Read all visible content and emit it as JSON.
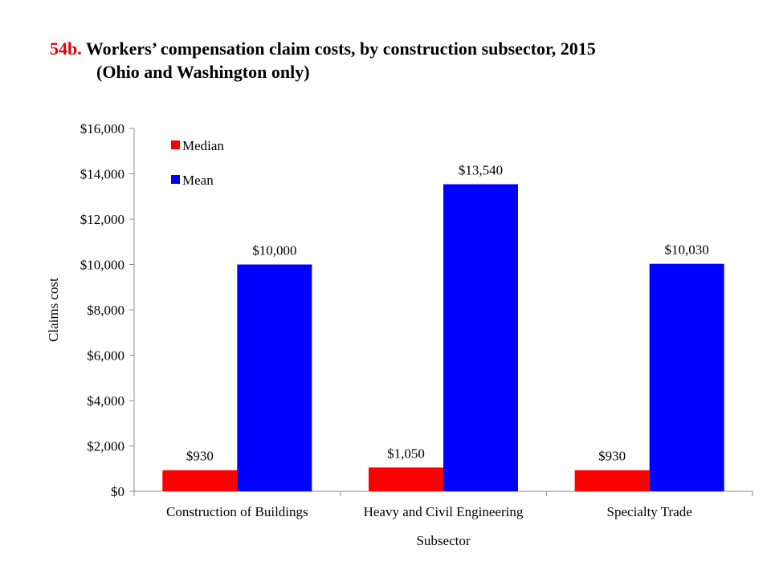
{
  "title": {
    "number": "54b.",
    "line1": "Workers’ compensation claim costs, by construction subsector, 2015",
    "line2": "(Ohio and Washington only)"
  },
  "chart_data": {
    "type": "bar",
    "title": "Workers’ compensation claim costs, by construction subsector, 2015 (Ohio and Washington only)",
    "xlabel": "Subsector",
    "ylabel": "Claims cost",
    "categories": [
      "Construction of Buildings",
      "Heavy and Civil Engineering",
      "Specialty Trade"
    ],
    "series": [
      {
        "name": "Median",
        "values": [
          930,
          1050,
          930
        ],
        "labels": [
          "$930",
          "$1,050",
          "$930"
        ],
        "color": "#ff0000"
      },
      {
        "name": "Mean",
        "values": [
          10000,
          13540,
          10030
        ],
        "labels": [
          "$10,000",
          "$13,540",
          "$10,030"
        ],
        "color": "#0000ff"
      }
    ],
    "ylim": [
      0,
      16000
    ],
    "yticks": [
      0,
      2000,
      4000,
      6000,
      8000,
      10000,
      12000,
      14000,
      16000
    ],
    "ytick_labels": [
      "$0",
      "$2,000",
      "$4,000",
      "$6,000",
      "$8,000",
      "$10,000",
      "$12,000",
      "$14,000",
      "$16,000"
    ],
    "grid": false,
    "legend_position": "top-left"
  }
}
